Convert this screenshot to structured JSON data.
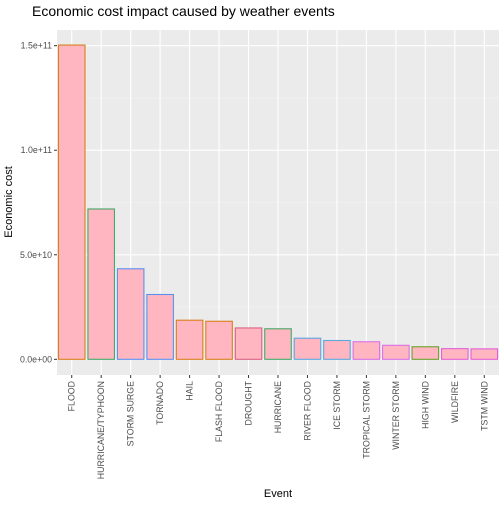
{
  "chart_data": {
    "type": "bar",
    "title": "Economic cost impact caused by weather events",
    "xlabel": "Event",
    "ylabel": "Economic cost",
    "categories": [
      "FLOOD",
      "HURRICANE/TYPHOON",
      "STORM SURGE",
      "TORNADO",
      "HAIL",
      "FLASH FLOOD",
      "DROUGHT",
      "HURRICANE",
      "RIVER FLOOD",
      "ICE STORM",
      "TROPICAL STORM",
      "WINTER STORM",
      "HIGH WIND",
      "WILDFIRE",
      "TSTM WIND"
    ],
    "values": [
      150300000000,
      71900000000,
      43300000000,
      31000000000,
      18700000000,
      18200000000,
      15000000000,
      14600000000,
      10100000000,
      9000000000,
      8400000000,
      6700000000,
      6000000000,
      5100000000,
      5000000000
    ],
    "yticks": [
      0,
      50000000000,
      100000000000,
      150000000000
    ],
    "ytick_labels": [
      "0.0e+00",
      "5.0e+10",
      "1.0e+11",
      "1.5e+11"
    ],
    "ylim": [
      -7500000000,
      157500000000
    ],
    "grid": true,
    "legend": "none",
    "colors": {
      "panel_bg": "#ebebeb",
      "grid_major": "#ffffff",
      "bar_fill": "#ffb6c1",
      "outlines": [
        "#d97f1f",
        "#45a869",
        "#5b8ff0",
        "#5b8ff0",
        "#d97f1f",
        "#d97f1f",
        "#d95f7f",
        "#45a869",
        "#5ba7e0",
        "#5ba7e0",
        "#d86fe8",
        "#d86fe8",
        "#6aa22a",
        "#e35fd7",
        "#e35fd7"
      ],
      "text": "#4d4d4d",
      "title": "#000000"
    }
  }
}
